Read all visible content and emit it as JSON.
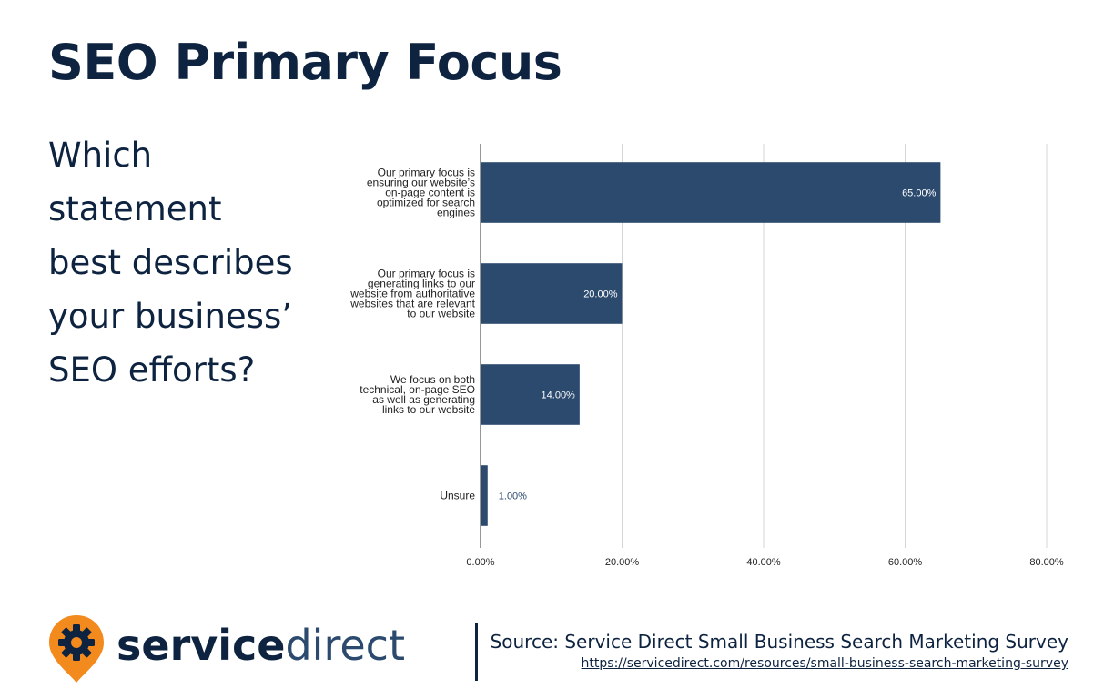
{
  "header": {
    "title": "SEO Primary Focus"
  },
  "question": [
    "Which",
    "statement",
    "best describes",
    "your business’",
    "SEO efforts?"
  ],
  "chart_data": {
    "type": "bar",
    "orientation": "horizontal",
    "categories": [
      [
        "Our primary focus is",
        "ensuring our website’s",
        "on-page content is",
        "optimized for search",
        "engines"
      ],
      [
        "Our primary focus is",
        "generating links to our",
        "website from authoritative",
        "websites that are relevant",
        "to our website"
      ],
      [
        "We focus on both",
        "technical, on-page SEO",
        "as well as generating",
        "links to our website"
      ],
      [
        "Unsure"
      ]
    ],
    "values": [
      65,
      20,
      14,
      1
    ],
    "value_labels": [
      "65.00%",
      "20.00%",
      "14.00%",
      "1.00%"
    ],
    "xlim": [
      0,
      80
    ],
    "xticks": [
      "0.00%",
      "20.00%",
      "40.00%",
      "60.00%",
      "80.00%"
    ],
    "grid": true,
    "bar_color": "#2b4a6e",
    "label_color_inside": "#ffffff",
    "label_color_outside": "#2b4a6e"
  },
  "footer": {
    "brand_bold": "service",
    "brand_light": "direct",
    "source_text": "Source: Service Direct Small Business Search Marketing Survey",
    "source_url": "https://servicedirect.com/resources/small-business-search-marketing-survey",
    "brand_orange": "#f28a1e",
    "brand_navy": "#0d2340"
  }
}
